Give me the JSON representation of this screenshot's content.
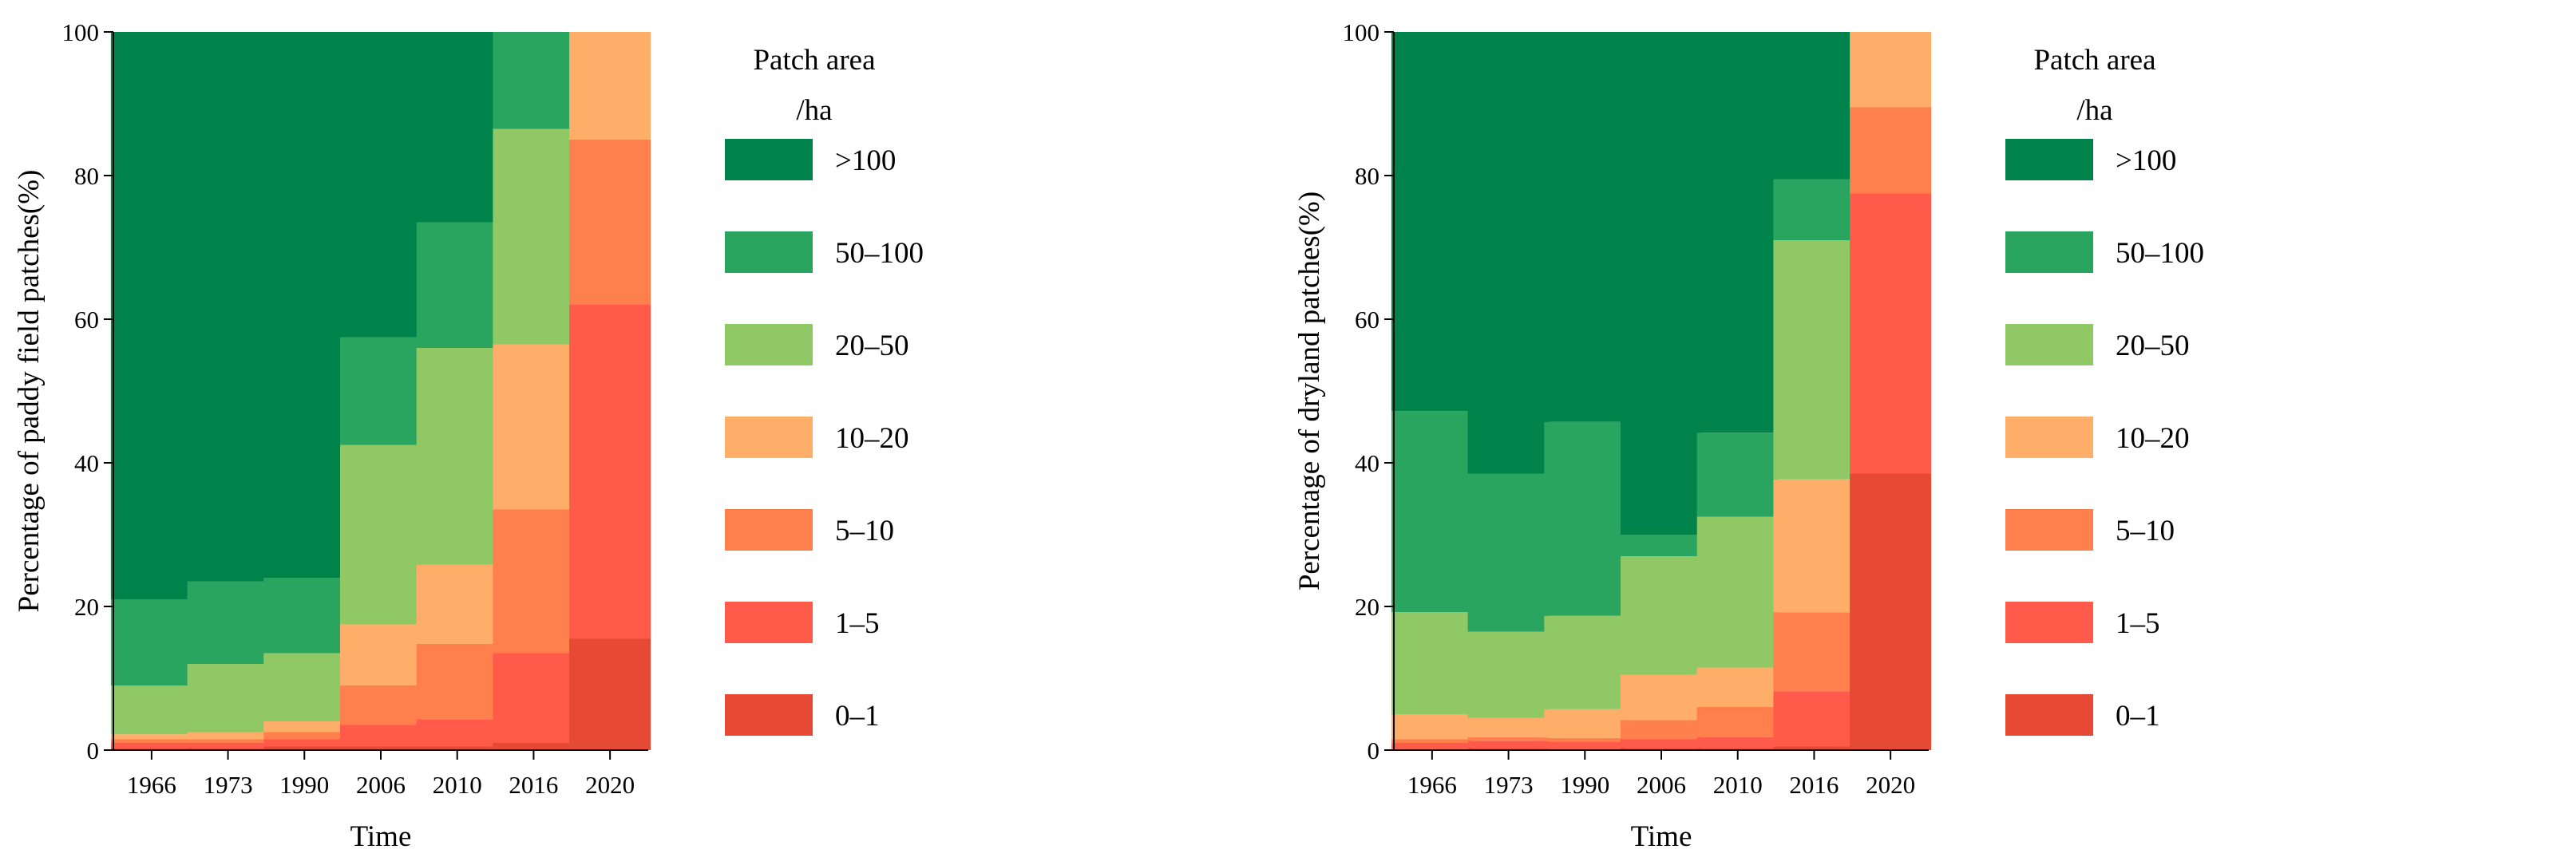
{
  "chart_data": [
    {
      "type": "bar",
      "stacked": true,
      "title": "",
      "xlabel": "Time",
      "ylabel": "Percentage of paddy field patches(%)",
      "ylim": [
        0,
        100
      ],
      "yticks": [
        "0",
        "20",
        "40",
        "60",
        "80",
        "100"
      ],
      "categories": [
        "1966",
        "1973",
        "1990",
        "2006",
        "2010",
        "2016",
        "2020"
      ],
      "legend_title": [
        "Patch area",
        "/ha"
      ],
      "legend_position": "right",
      "series": [
        {
          "name": "0–1",
          "color": "#e64a34",
          "values": [
            0.3,
            0.3,
            0.5,
            0.5,
            0.5,
            1.0,
            15.5
          ]
        },
        {
          "name": "1–5",
          "color": "#ff5a4a",
          "values": [
            0.7,
            0.7,
            1.0,
            3.0,
            3.8,
            12.5,
            46.5
          ]
        },
        {
          "name": "5–10",
          "color": "#ff7f4d",
          "values": [
            0.5,
            0.5,
            1.0,
            5.5,
            10.5,
            20.0,
            23.0
          ]
        },
        {
          "name": "10–20",
          "color": "#feae68",
          "values": [
            0.7,
            1.0,
            1.5,
            8.5,
            11.0,
            23.0,
            15.0
          ]
        },
        {
          "name": "20–50",
          "color": "#8fc865",
          "values": [
            6.8,
            9.5,
            9.5,
            25.0,
            30.2,
            30.0,
            0
          ]
        },
        {
          "name": "50–100",
          "color": "#2aa55f",
          "values": [
            12.0,
            11.5,
            10.5,
            15.0,
            17.5,
            13.5,
            0
          ]
        },
        {
          "name": ">100",
          "color": "#00834a",
          "values": [
            79.0,
            76.5,
            76.0,
            42.5,
            26.5,
            0,
            0
          ]
        }
      ]
    },
    {
      "type": "bar",
      "stacked": true,
      "title": "",
      "xlabel": "Time",
      "ylabel": "Percentage of dryland patches(%)",
      "ylim": [
        0,
        100
      ],
      "yticks": [
        "0",
        "20",
        "40",
        "60",
        "80",
        "100"
      ],
      "categories": [
        "1966",
        "1973",
        "1990",
        "2006",
        "2010",
        "2016",
        "2020"
      ],
      "legend_title": [
        "Patch area",
        "/ha"
      ],
      "legend_position": "right",
      "series": [
        {
          "name": "0–1",
          "color": "#e64a34",
          "values": [
            0.2,
            0.3,
            0.2,
            0.3,
            0.3,
            0.5,
            38.5
          ]
        },
        {
          "name": "1–5",
          "color": "#ff5a4a",
          "values": [
            0.8,
            1.0,
            1.0,
            1.2,
            1.5,
            7.7,
            39.0
          ]
        },
        {
          "name": "5–10",
          "color": "#ff7f4d",
          "values": [
            0.5,
            0.5,
            0.5,
            2.7,
            4.2,
            11.0,
            12.0
          ]
        },
        {
          "name": "10–20",
          "color": "#feae68",
          "values": [
            3.5,
            2.7,
            4.0,
            6.3,
            5.5,
            18.5,
            10.5
          ]
        },
        {
          "name": "20–50",
          "color": "#8fc865",
          "values": [
            14.2,
            12.0,
            13.0,
            16.5,
            21.0,
            33.3,
            0
          ]
        },
        {
          "name": "50–100",
          "color": "#2aa55f",
          "values": [
            28.0,
            22.0,
            27.0,
            3.0,
            11.7,
            8.5,
            0
          ]
        },
        {
          "name": ">100",
          "color": "#00834a",
          "values": [
            52.8,
            61.5,
            54.3,
            70.0,
            55.8,
            20.5,
            0
          ]
        }
      ]
    }
  ]
}
